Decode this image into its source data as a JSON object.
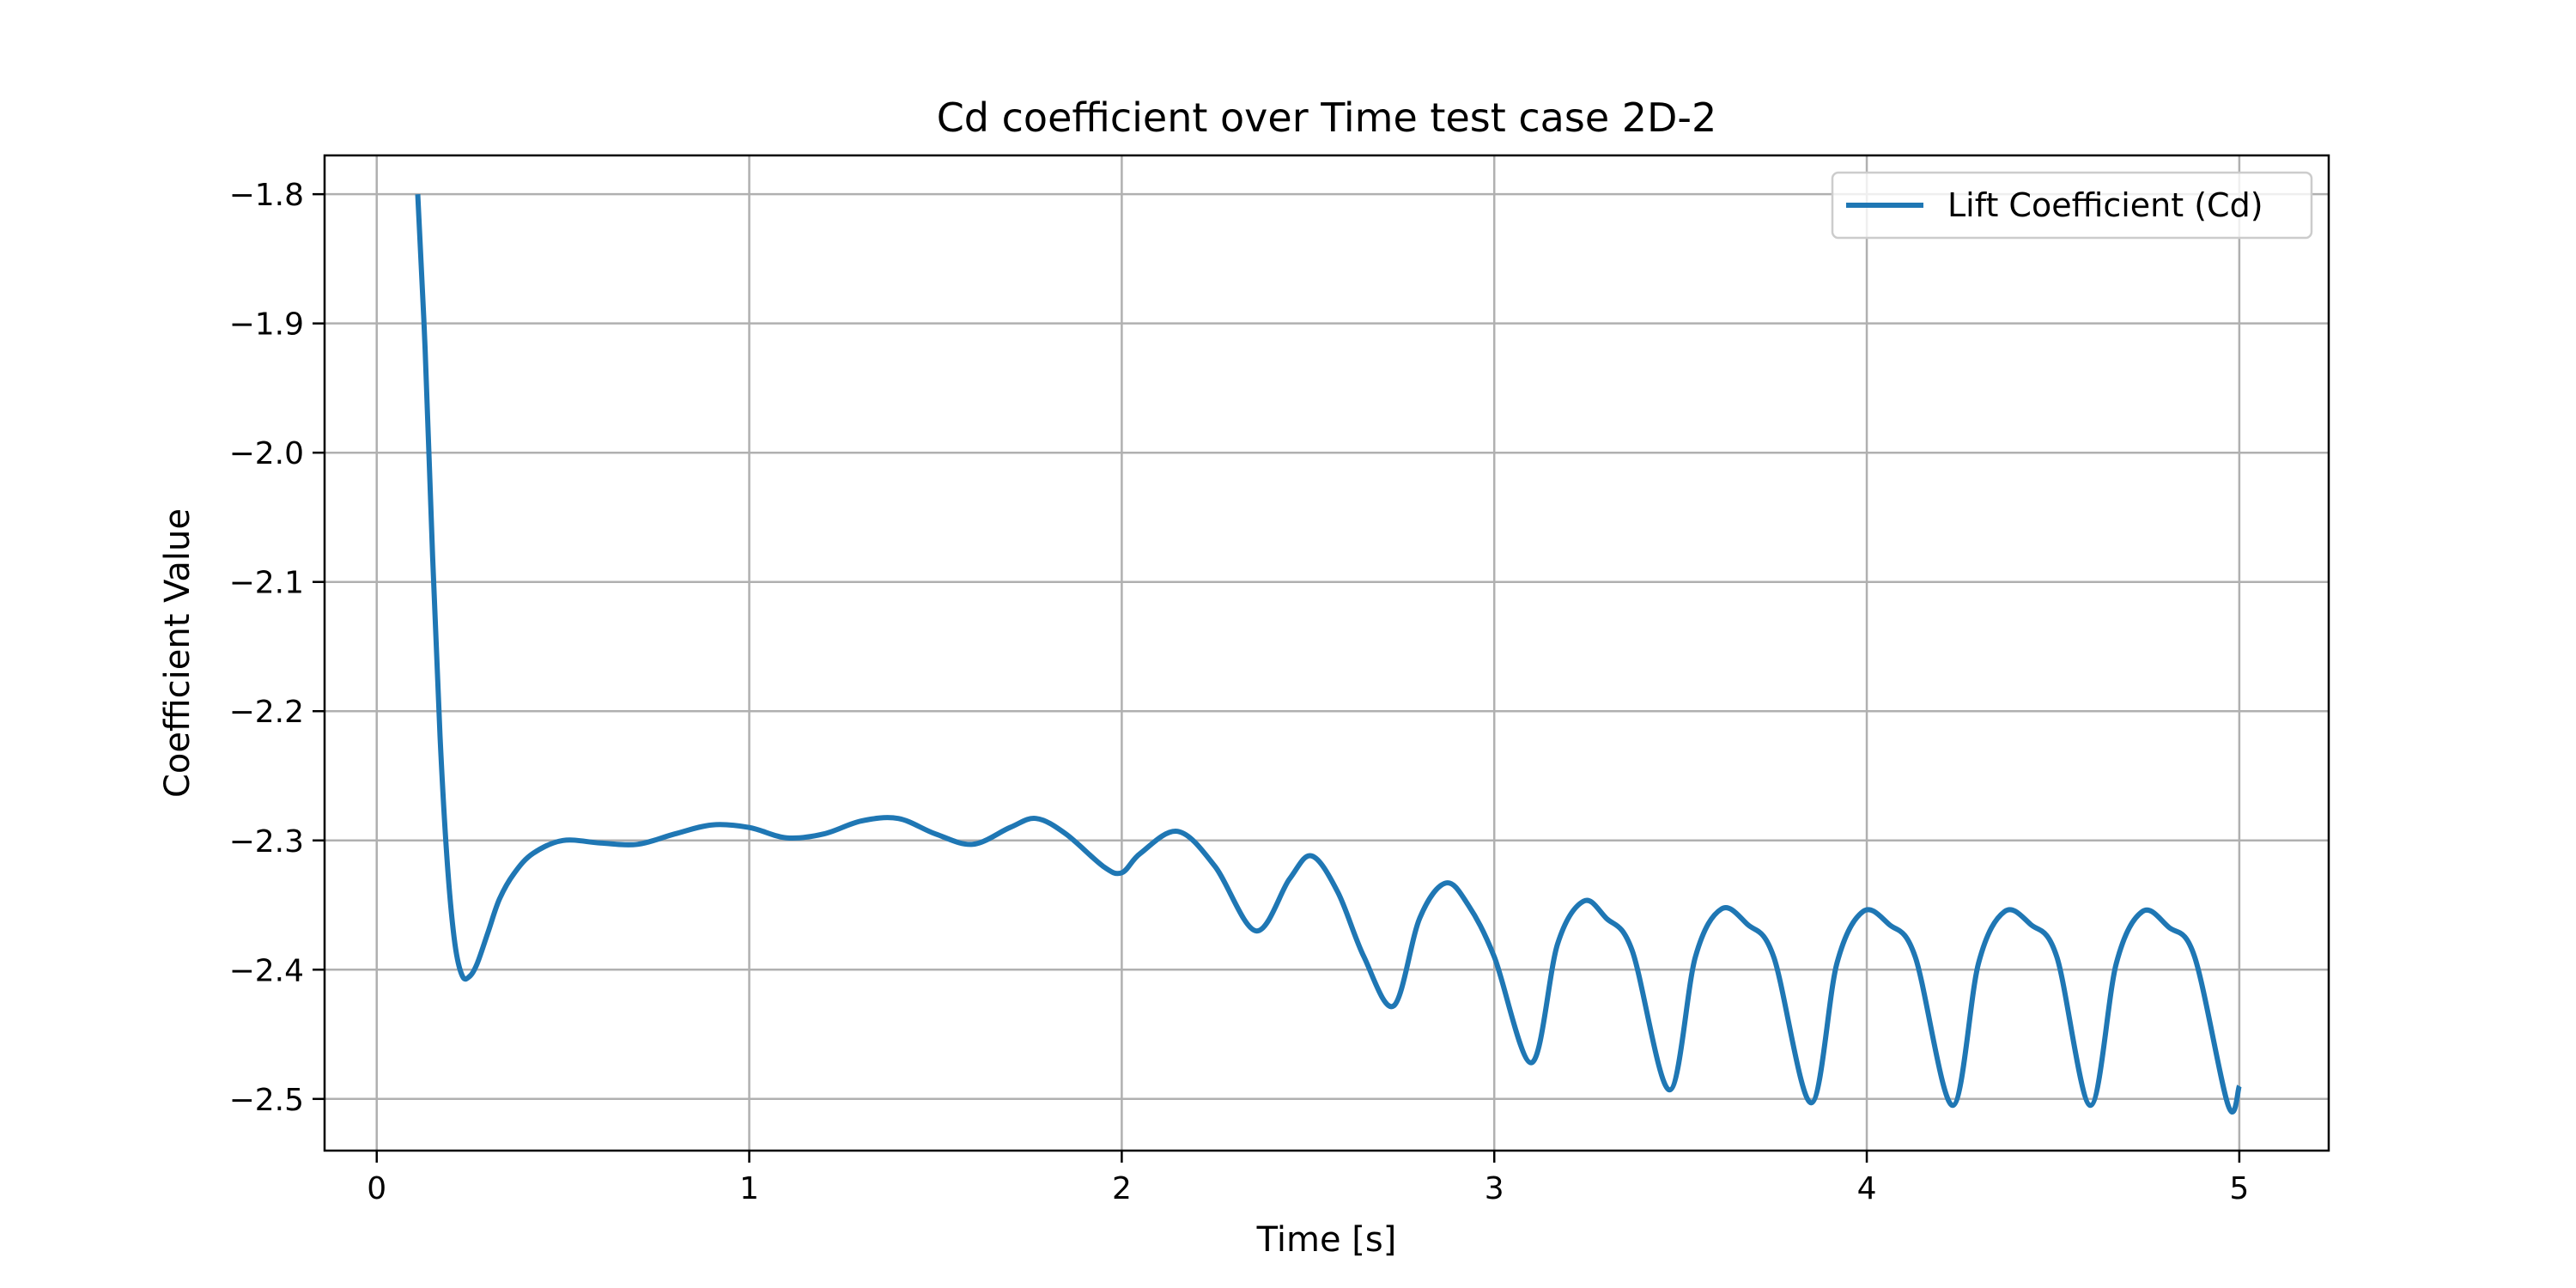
{
  "chart_data": {
    "type": "line",
    "title": "Cd coefficient over Time test case 2D-2",
    "xlabel": "Time [s]",
    "ylabel": "Coefficient Value",
    "xlim": [
      -0.14,
      5.24
    ],
    "ylim": [
      -2.54,
      -1.77
    ],
    "x_ticks": [
      0,
      1,
      2,
      3,
      4,
      5
    ],
    "x_tick_labels": [
      "0",
      "1",
      "2",
      "3",
      "4",
      "5"
    ],
    "y_ticks": [
      -1.8,
      -1.9,
      -2.0,
      -2.1,
      -2.2,
      -2.3,
      -2.4,
      -2.5
    ],
    "y_tick_labels": [
      "−1.8",
      "−1.9",
      "−2.0",
      "−2.1",
      "−2.2",
      "−2.3",
      "−2.4",
      "−2.5"
    ],
    "grid": true,
    "legend_position": "top-right",
    "series": [
      {
        "name": "Lift Coefficient (Cd)",
        "color": "#1f77b4",
        "x": [
          0.11,
          0.13,
          0.15,
          0.17,
          0.19,
          0.21,
          0.23,
          0.25,
          0.27,
          0.3,
          0.33,
          0.37,
          0.42,
          0.5,
          0.6,
          0.7,
          0.8,
          0.9,
          1.0,
          1.1,
          1.2,
          1.3,
          1.4,
          1.5,
          1.6,
          1.7,
          1.77,
          1.85,
          1.95,
          2.0,
          2.05,
          2.15,
          2.25,
          2.36,
          2.45,
          2.51,
          2.58,
          2.65,
          2.73,
          2.8,
          2.87,
          2.93,
          3.0,
          3.1,
          3.17,
          3.24,
          3.3,
          3.37,
          3.47,
          3.54,
          3.61,
          3.68,
          3.75,
          3.85,
          3.92,
          3.99,
          4.06,
          4.13,
          4.23,
          4.3,
          4.37,
          4.44,
          4.51,
          4.6,
          4.67,
          4.74,
          4.81,
          4.88,
          4.97,
          5.0
        ],
        "y": [
          -1.8,
          -1.92,
          -2.08,
          -2.22,
          -2.32,
          -2.38,
          -2.405,
          -2.405,
          -2.395,
          -2.37,
          -2.345,
          -2.325,
          -2.31,
          -2.3,
          -2.302,
          -2.303,
          -2.295,
          -2.288,
          -2.29,
          -2.298,
          -2.295,
          -2.285,
          -2.283,
          -2.295,
          -2.303,
          -2.29,
          -2.283,
          -2.295,
          -2.32,
          -2.325,
          -2.31,
          -2.293,
          -2.32,
          -2.37,
          -2.33,
          -2.312,
          -2.34,
          -2.39,
          -2.428,
          -2.36,
          -2.333,
          -2.35,
          -2.39,
          -2.472,
          -2.38,
          -2.347,
          -2.36,
          -2.385,
          -2.493,
          -2.39,
          -2.353,
          -2.365,
          -2.39,
          -2.503,
          -2.395,
          -2.355,
          -2.365,
          -2.39,
          -2.505,
          -2.395,
          -2.355,
          -2.365,
          -2.39,
          -2.505,
          -2.395,
          -2.355,
          -2.367,
          -2.39,
          -2.505,
          -2.49
        ]
      }
    ]
  }
}
